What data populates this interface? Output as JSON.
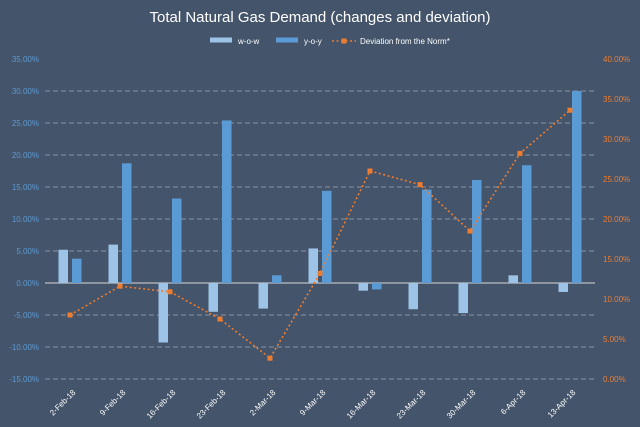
{
  "chart_data": {
    "type": "bar",
    "title": "Total Natural Gas Demand (changes and deviation)",
    "categories": [
      "2-Feb-18",
      "9-Feb-18",
      "16-Feb-18",
      "23-Feb-18",
      "2-Mar-18",
      "9-Mar-18",
      "16-Mar-18",
      "23-Mar-18",
      "30-Mar-18",
      "6-Apr-18",
      "13-Apr-18"
    ],
    "series": [
      {
        "name": "w-o-w",
        "type": "bar",
        "axis": "left",
        "color": "#9dc3e6",
        "values": [
          5.2,
          6.0,
          -9.3,
          -4.5,
          -4.0,
          5.4,
          -1.2,
          -4.1,
          -4.7,
          1.2,
          -1.4
        ]
      },
      {
        "name": "y-o-y",
        "type": "bar",
        "axis": "left",
        "color": "#5b9bd5",
        "values": [
          3.8,
          18.7,
          13.2,
          25.4,
          1.2,
          14.4,
          -1.0,
          14.6,
          16.1,
          18.4,
          30.0
        ]
      },
      {
        "name": "Deviation from the Norm*",
        "type": "line",
        "axis": "right",
        "color": "#ed7d31",
        "values": [
          8.0,
          11.6,
          10.9,
          7.5,
          2.6,
          13.2,
          26.0,
          24.3,
          18.5,
          28.2,
          33.6
        ]
      }
    ],
    "ylim_left": [
      -15,
      35
    ],
    "yticks_left": [
      "35.00%",
      "30.00%",
      "25.00%",
      "20.00%",
      "15.00%",
      "10.00%",
      "5.00%",
      "0.00%",
      "-5.00%",
      "-10.00%",
      "-15.00%"
    ],
    "ylim_right": [
      0,
      40
    ],
    "yticks_right": [
      "40.00%",
      "35.00%",
      "30.00%",
      "25.00%",
      "20.00%",
      "15.00%",
      "10.00%",
      "5.00%",
      "0.00%"
    ],
    "legend_position": "top-center",
    "grid": true
  }
}
